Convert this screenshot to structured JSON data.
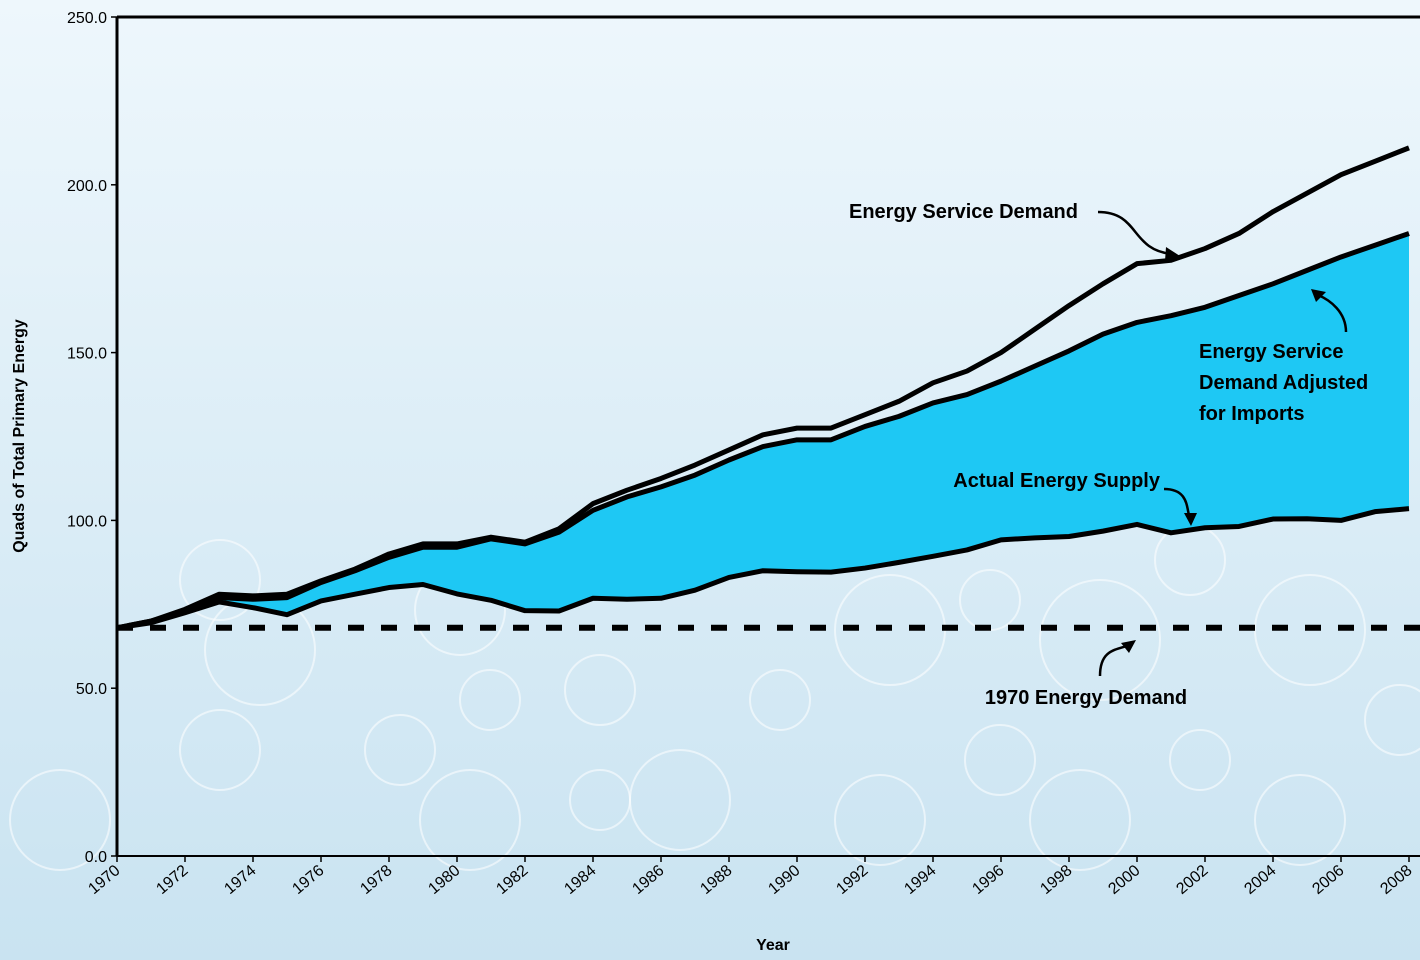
{
  "chart_data": {
    "type": "line",
    "x_label": "Year",
    "y_label": "Quads of Total Primary Energy",
    "x": [
      1970,
      1971,
      1972,
      1973,
      1974,
      1975,
      1976,
      1977,
      1978,
      1979,
      1980,
      1981,
      1982,
      1983,
      1984,
      1985,
      1986,
      1987,
      1988,
      1989,
      1990,
      1991,
      1992,
      1993,
      1994,
      1995,
      1996,
      1997,
      1998,
      1999,
      2000,
      2001,
      2002,
      2003,
      2004,
      2005,
      2006,
      2007,
      2008
    ],
    "series": [
      {
        "name": "Energy Service Demand",
        "color": "#000000",
        "values": [
          68,
          70,
          73.5,
          78,
          77.5,
          78,
          82,
          85.5,
          90,
          93,
          93,
          95,
          93.5,
          97.5,
          105,
          109,
          112.5,
          116.5,
          121,
          125.5,
          127.5,
          127.5,
          131.5,
          135.5,
          141,
          144.5,
          150,
          157,
          164,
          170.5,
          176.5,
          177.5,
          181,
          185.5,
          192,
          197.5,
          203,
          207,
          211
        ]
      },
      {
        "name": "Energy Service Demand Adjusted for Imports",
        "color": "#000000",
        "fill": "#1ec8f4",
        "values": [
          68,
          70,
          73,
          77,
          76.5,
          77,
          81.5,
          85,
          89,
          92,
          92,
          94.5,
          93,
          96.5,
          103,
          107,
          110,
          113.5,
          118,
          122,
          124,
          124,
          128,
          131,
          135,
          137.5,
          141.5,
          146,
          150.5,
          155.5,
          159,
          161,
          163.5,
          167,
          170.5,
          174.5,
          178.5,
          182,
          185.5
        ]
      },
      {
        "name": "Actual Energy Supply",
        "color": "#000000",
        "values": [
          68,
          69.5,
          72.5,
          75.7,
          74,
          71.9,
          76,
          78,
          80,
          80.9,
          78.1,
          76.2,
          73.1,
          73,
          76.8,
          76.5,
          76.8,
          79.2,
          83,
          85,
          84.7,
          84.6,
          85.8,
          87.5,
          89.3,
          91.2,
          94.2,
          94.8,
          95.2,
          96.8,
          98.8,
          96.3,
          97.8,
          98.2,
          100.4,
          100.5,
          100,
          102.6,
          103.5
        ]
      }
    ],
    "reference_line": {
      "name": "1970 Energy Demand",
      "value": 68,
      "color": "#000000"
    },
    "xlim": [
      1970,
      2008
    ],
    "xticks": [
      1970,
      1972,
      1974,
      1976,
      1978,
      1980,
      1982,
      1984,
      1986,
      1988,
      1990,
      1992,
      1994,
      1996,
      1998,
      2000,
      2002,
      2004,
      2006,
      2008
    ],
    "ylim": [
      0,
      250
    ],
    "yticks": [
      {
        "value": 0,
        "label": "0.0"
      },
      {
        "value": 50,
        "label": "50.0"
      },
      {
        "value": 100,
        "label": "100.0"
      },
      {
        "value": 150,
        "label": "150.0"
      },
      {
        "value": 200,
        "label": "200.0"
      },
      {
        "value": 250,
        "label": "250.0"
      }
    ]
  }
}
